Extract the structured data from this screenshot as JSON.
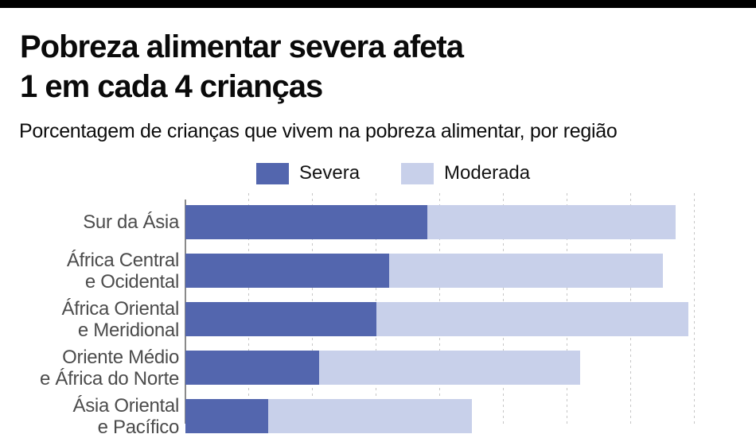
{
  "header": {
    "title_line1": "Pobreza alimentar severa afeta",
    "title_line2": "1 em cada 4 crianças",
    "subtitle": "Porcentagem de crianças que vivem na pobreza alimentar, por região"
  },
  "legend": {
    "items": [
      {
        "label": "Severa",
        "color": "#5366ae"
      },
      {
        "label": "Moderada",
        "color": "#c8d0ea"
      }
    ]
  },
  "chart_data": {
    "type": "bar",
    "orientation": "horizontal",
    "stacked": true,
    "title": "Pobreza alimentar severa afeta 1 em cada 4 crianças",
    "subtitle": "Porcentagem de crianças que vivem na pobreza alimentar, por região",
    "unit": "%",
    "xlim": [
      0,
      80
    ],
    "grid_step": 10,
    "grid": "dashed-vertical",
    "legend_position": "top",
    "categories": [
      "Sur da Ásia",
      "África Central e Ocidental",
      "África Oriental e Meridional",
      "Oriente Médio e África do Norte",
      "Ásia Oriental e Pacífico"
    ],
    "category_label_lines": [
      [
        "Sur da Ásia"
      ],
      [
        "África Central",
        "e Ocidental"
      ],
      [
        "África Oriental",
        "e Meridional"
      ],
      [
        "Oriente Médio",
        "e África do Norte"
      ],
      [
        "Ásia Oriental",
        "e Pacífico"
      ]
    ],
    "series": [
      {
        "name": "Severa",
        "color": "#5366ae",
        "values": [
          38,
          32,
          30,
          21,
          13
        ]
      },
      {
        "name": "Moderada",
        "color": "#c8d0ea",
        "values": [
          39,
          43,
          49,
          41,
          32
        ]
      }
    ],
    "totals": [
      77,
      75,
      79,
      62,
      45
    ]
  }
}
